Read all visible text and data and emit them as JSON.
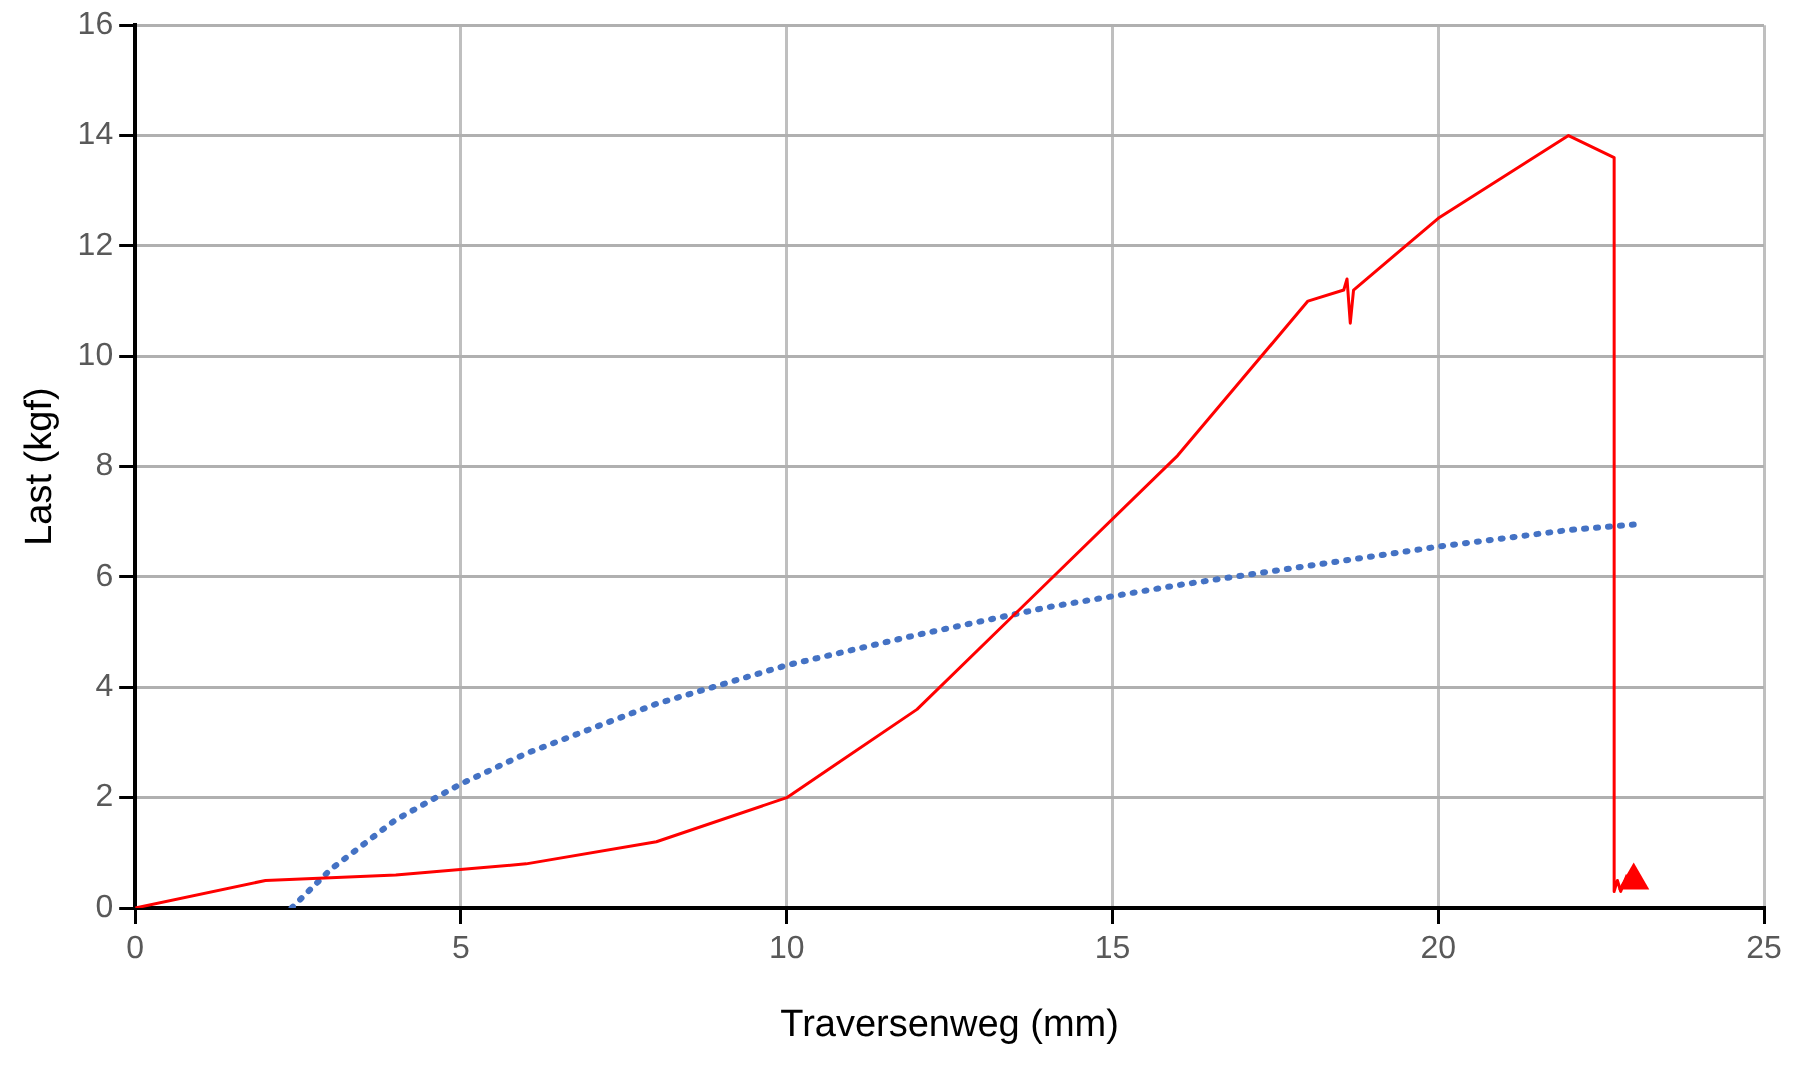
{
  "chart_data": {
    "type": "line",
    "xlabel": "Traversenweg (mm)",
    "ylabel": "Last (kgf)",
    "xlim": [
      0,
      25
    ],
    "xticks": [
      0,
      5,
      10,
      15,
      20,
      25
    ],
    "ylim": [
      0,
      16
    ],
    "yticks": [
      0,
      2,
      4,
      6,
      8,
      10,
      12,
      14,
      16
    ],
    "grid": true,
    "legend": false,
    "marker": "none",
    "series": [
      {
        "color": "#ff0000",
        "line_style": "solid",
        "x": [
          0,
          2,
          4,
          6,
          8,
          10,
          12,
          14,
          16,
          18,
          18.55,
          18.6,
          18.65,
          18.7,
          20,
          22,
          22.7,
          22.7,
          22.75,
          22.8,
          22.9
        ],
        "values": [
          0,
          0.5,
          0.6,
          0.8,
          1.2,
          2,
          3.6,
          5.9,
          8.2,
          11,
          11.2,
          11.4,
          10.6,
          11.2,
          12.5,
          14,
          13.6,
          0.3,
          0.5,
          0.3,
          0.6
        ]
      },
      {
        "type": "scatter",
        "color": "#ff0000",
        "marker": "triangle",
        "x": [
          23
        ],
        "values": [
          0.5
        ]
      },
      {
        "color": "#4472c4",
        "line_style": "dotted",
        "x": [
          2.4,
          3,
          4,
          5,
          6,
          7,
          8,
          9,
          10,
          12,
          14,
          16,
          18,
          20,
          22,
          23
        ],
        "values": [
          0,
          0.7,
          1.6,
          2.25,
          2.8,
          3.25,
          3.7,
          4.05,
          4.4,
          4.95,
          5.45,
          5.85,
          6.2,
          6.55,
          6.85,
          6.95
        ]
      }
    ]
  }
}
